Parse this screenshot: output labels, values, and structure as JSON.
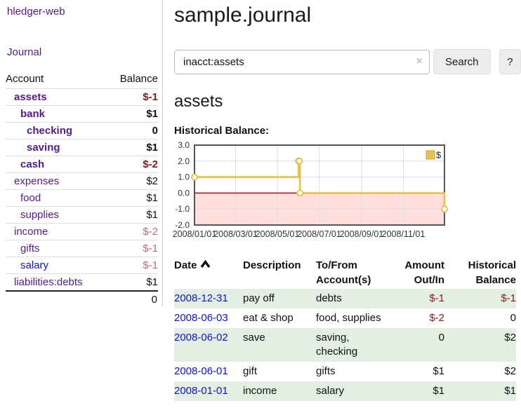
{
  "app": {
    "brand": "hledger-web"
  },
  "sidebar": {
    "nav_journal": "Journal",
    "accounts": {
      "col_account": "Account",
      "col_balance": "Balance",
      "rows": [
        {
          "name": "assets",
          "indent": 1,
          "bold": true,
          "balance": "$-1",
          "negative": true
        },
        {
          "name": "bank",
          "indent": 2,
          "bold": true,
          "balance": "$1",
          "negative": false
        },
        {
          "name": "checking",
          "indent": 3,
          "bold": true,
          "balance": "0",
          "negative": false
        },
        {
          "name": "saving",
          "indent": 3,
          "bold": true,
          "balance": "$1",
          "negative": false
        },
        {
          "name": "cash",
          "indent": 2,
          "bold": true,
          "balance": "$-2",
          "negative": true
        },
        {
          "name": "expenses",
          "indent": 1,
          "bold": false,
          "balance": "$2",
          "negative": false
        },
        {
          "name": "food",
          "indent": 2,
          "bold": false,
          "balance": "$1",
          "negative": false
        },
        {
          "name": "supplies",
          "indent": 2,
          "bold": false,
          "balance": "$1",
          "negative": false
        },
        {
          "name": "income",
          "indent": 1,
          "bold": false,
          "balance": "$-2",
          "negative": true
        },
        {
          "name": "gifts",
          "indent": 2,
          "bold": false,
          "balance": "$-1",
          "negative": true
        },
        {
          "name": "salary",
          "indent": 2,
          "bold": false,
          "balance": "$-1",
          "negative": true,
          "unvisited": true
        },
        {
          "name": "liabilities:debts",
          "indent": 1,
          "bold": false,
          "balance": "$1",
          "negative": false
        }
      ],
      "total": "0"
    }
  },
  "main": {
    "title": "sample.journal",
    "search": {
      "value": "inacct:assets",
      "clear_icon": "×",
      "search_button": "Search",
      "help_button": "?"
    },
    "account_heading": "assets",
    "chart_title": "Historical Balance:"
  },
  "chart_data": {
    "type": "line",
    "step": true,
    "title": "Historical Balance:",
    "legend": {
      "label": "$",
      "position": "top-right"
    },
    "series": [
      {
        "name": "$",
        "points": [
          [
            "2008-01-01",
            1
          ],
          [
            "2008-06-01",
            2
          ],
          [
            "2008-06-02",
            2
          ],
          [
            "2008-06-03",
            0
          ],
          [
            "2008-12-31",
            -1
          ]
        ]
      }
    ],
    "y_ticks": [
      3.0,
      2.0,
      1.0,
      0.0,
      -1.0,
      -2.0
    ],
    "ylim": [
      -2,
      3
    ],
    "x_tick_labels": [
      "2008/01/01",
      "2008/03/01",
      "2008/05/01",
      "2008/07/01",
      "2008/09/01",
      "2008/11/01"
    ],
    "grid": true,
    "colors": {
      "line": "#e6c14d",
      "marker_fill": "#ffffff",
      "legend_swatch": "#e6c14d",
      "legend_swatch_border": "#c9a42e",
      "negative_region": "#ffdede",
      "zero_line": "#991111",
      "grid": "#dddddd",
      "border": "#545454",
      "tick_text": "#333333"
    }
  },
  "register_table": {
    "headers": [
      "Date",
      "Description",
      "To/From Account(s)",
      "Amount Out/In",
      "Historical Balance"
    ],
    "sort_icon": "chevron-up",
    "rows": [
      {
        "date": "2008-12-31",
        "description": "pay off",
        "accounts": [
          "debts"
        ],
        "amount": "$-1",
        "amount_negative": true,
        "balance": "$-1",
        "balance_negative": true,
        "highlight": true
      },
      {
        "date": "2008-06-03",
        "description": "eat & shop",
        "accounts": [
          "food, supplies"
        ],
        "amount": "$-2",
        "amount_negative": true,
        "balance": "0",
        "balance_negative": false,
        "highlight": false
      },
      {
        "date": "2008-06-02",
        "description": "save",
        "accounts": [
          "saving,",
          "checking"
        ],
        "amount": "0",
        "amount_negative": false,
        "balance": "$2",
        "balance_negative": false,
        "highlight": true
      },
      {
        "date": "2008-06-01",
        "description": "gift",
        "accounts": [
          "gifts"
        ],
        "amount": "$1",
        "amount_negative": false,
        "balance": "$2",
        "balance_negative": false,
        "highlight": false
      },
      {
        "date": "2008-01-01",
        "description": "income",
        "accounts": [
          "salary"
        ],
        "amount": "$1",
        "amount_negative": false,
        "balance": "$1",
        "balance_negative": false,
        "highlight": true
      }
    ]
  },
  "colors": {
    "link_visited": "#551a8b",
    "link_unvisited": "#0f0fe8",
    "negative_strong": "#8c1717",
    "negative_soft": "#bd6b78",
    "row_highlight": "#e2efe2",
    "sidebar_border": "#cccccc"
  }
}
